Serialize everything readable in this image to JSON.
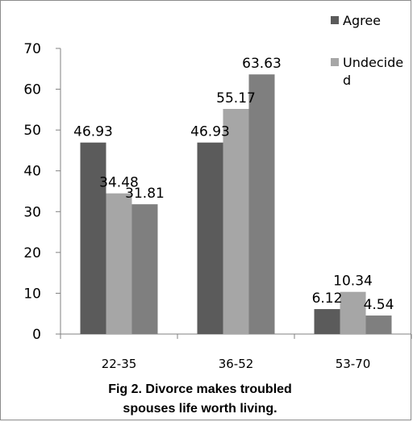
{
  "chart_data": {
    "type": "bar",
    "title": "Fig 2. Divorce makes troubled spouses life worth living.",
    "categories": [
      "22-35",
      "36-52",
      "53-70"
    ],
    "series": [
      {
        "name": "Agree",
        "values": [
          46.93,
          46.93,
          6.12
        ],
        "color": "#5b5b5b"
      },
      {
        "name": "Undecided",
        "values": [
          34.48,
          55.17,
          10.34
        ],
        "color": "#a6a6a6"
      },
      {
        "name": "",
        "values": [
          31.81,
          63.63,
          4.54
        ],
        "color": "#7f7f7f"
      }
    ],
    "value_labels": [
      [
        "46.93",
        "46.93",
        "6.12"
      ],
      [
        "34.48",
        "55.17",
        "10.34"
      ],
      [
        "31.81",
        "63.63",
        "4.54"
      ]
    ],
    "yticks": [
      "0",
      "10",
      "20",
      "30",
      "40",
      "50",
      "60",
      "70"
    ],
    "ylim": [
      0,
      70
    ],
    "grid": false,
    "legend_position": "top-right",
    "legend_lines": [
      [
        "Agree"
      ],
      [
        "Undecide",
        "d"
      ]
    ]
  }
}
